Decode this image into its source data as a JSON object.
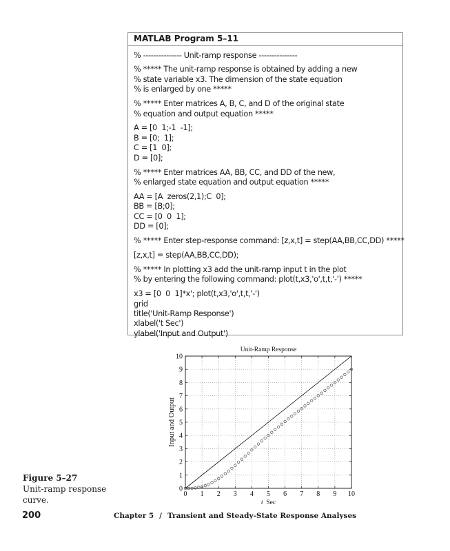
{
  "program": {
    "title": "MATLAB Program 5–11",
    "groups": [
      [
        "% --------------- Unit-ramp response ---------------"
      ],
      [
        "% ***** The unit-ramp response is obtained by adding a new",
        "% state variable x3. The dimension of the state equation",
        "% is enlarged by one *****"
      ],
      [
        "% ***** Enter matrices A, B, C, and D of the original state",
        "% equation and output equation *****"
      ],
      [
        "A = [0  1;-1  -1];",
        "B = [0;  1];",
        "C = [1  0];",
        "D = [0];"
      ],
      [
        "% ***** Enter matrices AA, BB, CC, and DD of the new,",
        "% enlarged state equation and output equation *****"
      ],
      [
        "AA = [A  zeros(2,1);C  0];",
        "BB = [B;0];",
        "CC = [0  0  1];",
        "DD = [0];"
      ],
      [
        "% ***** Enter step-response command: [z,x,t] = step(AA,BB,CC,DD) *****"
      ],
      [
        "[z,x,t] = step(AA,BB,CC,DD);"
      ],
      [
        "% ***** In plotting x3 add the unit-ramp input t in the plot",
        "% by entering the following command: plot(t,x3,'o',t,t,'-') *****"
      ],
      [
        "x3 = [0  0  1]*x'; plot(t,x3,'o',t,t,'-')",
        "grid",
        "title('Unit-Ramp Response')",
        "xlabel('t Sec')",
        "ylabel('Input and Output')"
      ]
    ]
  },
  "chart_data": {
    "type": "line",
    "title": "Unit-Ramp Response",
    "xlabel_italic": "t",
    "xlabel": "Sec",
    "ylabel": "Input and Output",
    "xlim": [
      0,
      10
    ],
    "ylim": [
      0,
      10
    ],
    "xticks": [
      "0",
      "1",
      "2",
      "3",
      "4",
      "5",
      "6",
      "7",
      "8",
      "9",
      "10"
    ],
    "yticks": [
      "0",
      "1",
      "2",
      "3",
      "4",
      "5",
      "6",
      "7",
      "8",
      "9",
      "10"
    ],
    "grid": true,
    "series": [
      {
        "style": "line",
        "x": [
          0,
          10
        ],
        "y": [
          0,
          10
        ]
      },
      {
        "style": "circles",
        "x": [
          0,
          0.2,
          0.4,
          0.6,
          0.8,
          1.0,
          1.2,
          1.4,
          1.6,
          1.8,
          2.0,
          2.2,
          2.4,
          2.6,
          2.8,
          3.0,
          3.2,
          3.4,
          3.6,
          3.8,
          4.0,
          4.2,
          4.4,
          4.6,
          4.8,
          5.0,
          5.2,
          5.4,
          5.6,
          5.8,
          6.0,
          6.2,
          6.4,
          6.6,
          6.8,
          7.0,
          7.2,
          7.4,
          7.6,
          7.8,
          8.0,
          8.2,
          8.4,
          8.6,
          8.8,
          9.0,
          9.2,
          9.4,
          9.6,
          9.8,
          10.0
        ],
        "y": [
          0,
          0.0,
          0.01,
          0.03,
          0.07,
          0.13,
          0.2,
          0.31,
          0.43,
          0.57,
          0.73,
          0.91,
          1.1,
          1.31,
          1.52,
          1.74,
          1.97,
          2.2,
          2.43,
          2.66,
          2.9,
          3.13,
          3.35,
          3.58,
          3.8,
          4.01,
          4.23,
          4.44,
          4.64,
          4.85,
          5.05,
          5.25,
          5.45,
          5.64,
          5.84,
          6.03,
          6.23,
          6.42,
          6.62,
          6.81,
          7.01,
          7.2,
          7.4,
          7.6,
          7.8,
          8.0,
          8.2,
          8.4,
          8.6,
          8.8,
          9.0
        ]
      }
    ],
    "colors": {
      "ink": "#111111",
      "grid": "#9a9a9a"
    }
  },
  "figure": {
    "label": "Figure 5–27",
    "caption_lines": [
      "Unit-ramp response",
      "curve."
    ]
  },
  "footer": {
    "page_number": "200",
    "chapter": "Chapter 5",
    "separator": "/",
    "chapter_title": "Transient and Steady-State Response Analyses"
  }
}
